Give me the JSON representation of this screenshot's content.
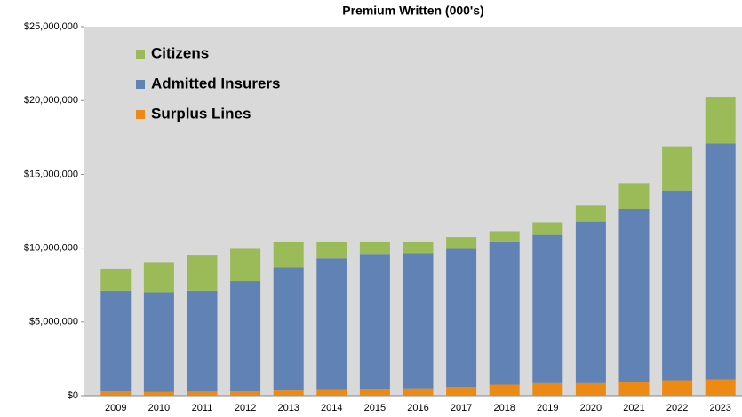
{
  "chart_data": {
    "type": "stacked-bar",
    "title": "Premium Written (000's)",
    "categories": [
      "2009",
      "2010",
      "2011",
      "2012",
      "2013",
      "2014",
      "2015",
      "2016",
      "2017",
      "2018",
      "2019",
      "2020",
      "2021",
      "2022",
      "2023"
    ],
    "series": [
      {
        "name": "Surplus Lines",
        "color": "#ed8a14",
        "values": [
          300000,
          250000,
          280000,
          300000,
          350000,
          380000,
          450000,
          500000,
          600000,
          750000,
          850000,
          850000,
          900000,
          1050000,
          1100000
        ]
      },
      {
        "name": "Admitted Insurers",
        "color": "#6182b5",
        "values": [
          6800000,
          6750000,
          6820000,
          7450000,
          8350000,
          8920000,
          9150000,
          9150000,
          9350000,
          9650000,
          10050000,
          10950000,
          11750000,
          12850000,
          16000000
        ]
      },
      {
        "name": "Citizens",
        "color": "#9bbb59",
        "values": [
          1500000,
          2050000,
          2450000,
          2200000,
          1700000,
          1100000,
          800000,
          750000,
          800000,
          750000,
          850000,
          1100000,
          1750000,
          2950000,
          3150000
        ]
      }
    ],
    "ylim": [
      0,
      25000000
    ],
    "yticks": [
      {
        "value": 0,
        "label": "$0"
      },
      {
        "value": 5000000,
        "label": "$5,000,000"
      },
      {
        "value": 10000000,
        "label": "$10,000,000"
      },
      {
        "value": 15000000,
        "label": "$15,000,000"
      },
      {
        "value": 20000000,
        "label": "$20,000,000"
      },
      {
        "value": 25000000,
        "label": "$25,000,000"
      }
    ],
    "legend": "top-left"
  }
}
